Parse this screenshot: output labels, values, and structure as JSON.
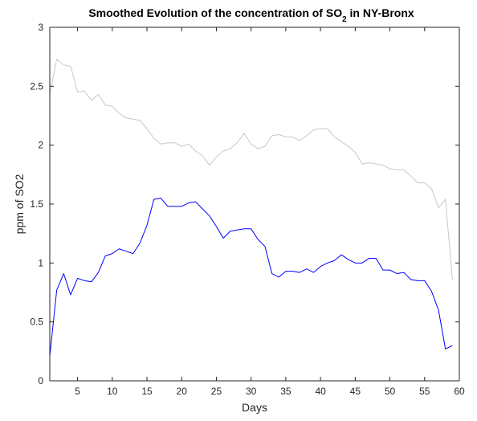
{
  "chart_data": {
    "type": "line",
    "title": "Smoothed Evolution of the concentration of SO",
    "title_subscript": "2",
    "title_suffix": " in NY-Bronx",
    "xlabel": "Days",
    "ylabel": "ppm of SO2",
    "xlim": [
      1,
      60
    ],
    "ylim": [
      0,
      3
    ],
    "xticks": [
      5,
      10,
      15,
      20,
      25,
      30,
      35,
      40,
      45,
      50,
      55,
      60
    ],
    "yticks": [
      0,
      0.5,
      1,
      1.5,
      2,
      2.5,
      3
    ],
    "ytick_labels": [
      "0",
      "0.5",
      "1",
      "1.5",
      "2",
      "2.5",
      "3"
    ],
    "grid": false,
    "series": [
      {
        "color": "#c8c8c8",
        "x": [
          1,
          2,
          3,
          4,
          5,
          6,
          7,
          8,
          9,
          10,
          11,
          12,
          13,
          14,
          15,
          16,
          17,
          18,
          19,
          20,
          21,
          22,
          23,
          24,
          25,
          26,
          27,
          28,
          29,
          30,
          31,
          32,
          33,
          34,
          35,
          36,
          37,
          38,
          39,
          40,
          41,
          42,
          43,
          44,
          45,
          46,
          47,
          48,
          49,
          50,
          51,
          52,
          53,
          54,
          55,
          56,
          57,
          58,
          59
        ],
        "values": [
          2.43,
          2.73,
          2.68,
          2.67,
          2.45,
          2.46,
          2.38,
          2.43,
          2.34,
          2.33,
          2.27,
          2.23,
          2.22,
          2.21,
          2.14,
          2.06,
          2.01,
          2.02,
          2.02,
          1.99,
          2.01,
          1.95,
          1.91,
          1.83,
          1.9,
          1.95,
          1.97,
          2.02,
          2.1,
          2.01,
          1.97,
          1.99,
          2.08,
          2.09,
          2.07,
          2.07,
          2.04,
          2.08,
          2.13,
          2.14,
          2.14,
          2.07,
          2.03,
          1.99,
          1.94,
          1.84,
          1.85,
          1.84,
          1.83,
          1.8,
          1.79,
          1.79,
          1.74,
          1.68,
          1.68,
          1.63,
          1.47,
          1.54,
          0.86
        ]
      },
      {
        "color": "#0000ff",
        "x": [
          1,
          2,
          3,
          4,
          5,
          6,
          7,
          8,
          9,
          10,
          11,
          12,
          13,
          14,
          15,
          16,
          17,
          18,
          19,
          20,
          21,
          22,
          23,
          24,
          25,
          26,
          27,
          28,
          29,
          30,
          31,
          32,
          33,
          34,
          35,
          36,
          37,
          38,
          39,
          40,
          41,
          42,
          43,
          44,
          45,
          46,
          47,
          48,
          49,
          50,
          51,
          52,
          53,
          54,
          55,
          56,
          57,
          58,
          59
        ],
        "values": [
          0.21,
          0.77,
          0.91,
          0.73,
          0.87,
          0.85,
          0.84,
          0.92,
          1.06,
          1.08,
          1.12,
          1.1,
          1.08,
          1.17,
          1.32,
          1.54,
          1.55,
          1.48,
          1.48,
          1.48,
          1.51,
          1.52,
          1.46,
          1.4,
          1.31,
          1.21,
          1.27,
          1.28,
          1.29,
          1.29,
          1.2,
          1.14,
          0.91,
          0.88,
          0.93,
          0.93,
          0.92,
          0.95,
          0.92,
          0.97,
          1.0,
          1.02,
          1.07,
          1.03,
          1.0,
          1.0,
          1.04,
          1.04,
          0.94,
          0.94,
          0.91,
          0.92,
          0.86,
          0.85,
          0.85,
          0.76,
          0.6,
          0.27,
          0.3
        ]
      }
    ]
  }
}
